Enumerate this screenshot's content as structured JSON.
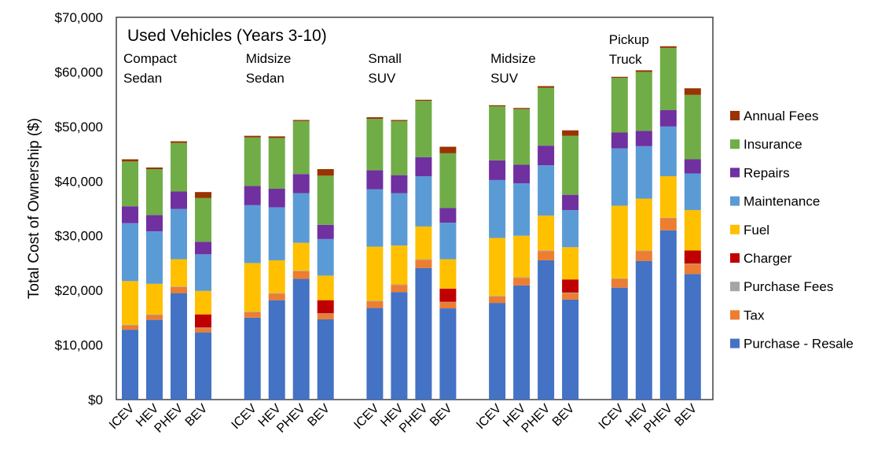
{
  "chart_data": {
    "type": "bar",
    "stacked": true,
    "title": "Used Vehicles (Years 3-10)",
    "ylabel": "Total Cost of Ownership ($)",
    "xlabel": "",
    "ylim": [
      0,
      70000
    ],
    "yticks": [
      0,
      10000,
      20000,
      30000,
      40000,
      50000,
      60000,
      70000
    ],
    "ytick_labels": [
      "$0",
      "$10,000",
      "$20,000",
      "$30,000",
      "$40,000",
      "$50,000",
      "$60,000",
      "$70,000"
    ],
    "grid": false,
    "legend_placement": "right",
    "groups": [
      {
        "label_lines": [
          "Compact",
          "Sedan"
        ]
      },
      {
        "label_lines": [
          "Midsize",
          "Sedan"
        ]
      },
      {
        "label_lines": [
          "Small",
          "SUV"
        ]
      },
      {
        "label_lines": [
          "Midsize",
          "SUV"
        ]
      },
      {
        "label_lines": [
          "Pickup",
          "Truck"
        ]
      }
    ],
    "categories": [
      "ICEV",
      "HEV",
      "PHEV",
      "BEV",
      "ICEV",
      "HEV",
      "PHEV",
      "BEV",
      "ICEV",
      "HEV",
      "PHEV",
      "BEV",
      "ICEV",
      "HEV",
      "PHEV",
      "BEV",
      "ICEV",
      "HEV",
      "PHEV",
      "BEV"
    ],
    "series": [
      {
        "name": "Purchase - Resale",
        "color": "#4472C4",
        "values": [
          12800,
          14600,
          19500,
          12300,
          15000,
          18200,
          22100,
          14700,
          16800,
          19700,
          24100,
          16700,
          17700,
          20900,
          25500,
          18300,
          20500,
          25400,
          31000,
          23000
        ]
      },
      {
        "name": "Tax",
        "color": "#ED7D31",
        "values": [
          800,
          900,
          1100,
          800,
          1000,
          1200,
          1400,
          1000,
          1200,
          1300,
          1500,
          1100,
          1200,
          1400,
          1700,
          1200,
          1600,
          1800,
          2200,
          1800
        ]
      },
      {
        "name": "Purchase Fees",
        "color": "#A5A5A5",
        "values": [
          100,
          100,
          100,
          100,
          100,
          100,
          100,
          100,
          100,
          100,
          100,
          100,
          100,
          100,
          100,
          100,
          100,
          100,
          100,
          100
        ]
      },
      {
        "name": "Charger",
        "color": "#C00000",
        "values": [
          0,
          0,
          0,
          2400,
          0,
          0,
          0,
          2400,
          0,
          0,
          0,
          2400,
          0,
          0,
          0,
          2400,
          0,
          0,
          0,
          2400
        ]
      },
      {
        "name": "Fuel",
        "color": "#FFC000",
        "values": [
          8000,
          5600,
          5000,
          4300,
          8900,
          6000,
          5100,
          4500,
          9900,
          7100,
          6000,
          5400,
          10600,
          7600,
          6400,
          5900,
          13300,
          9500,
          7600,
          7400
        ]
      },
      {
        "name": "Maintenance",
        "color": "#5B9BD5",
        "values": [
          10600,
          9600,
          9200,
          6700,
          10600,
          9700,
          9100,
          6700,
          10500,
          9600,
          9200,
          6700,
          10600,
          9600,
          9200,
          6800,
          10500,
          9600,
          9100,
          6700
        ]
      },
      {
        "name": "Repairs",
        "color": "#7030A0",
        "values": [
          3100,
          3000,
          3200,
          2300,
          3500,
          3400,
          3500,
          2600,
          3500,
          3300,
          3500,
          2700,
          3600,
          3400,
          3600,
          2800,
          2900,
          2800,
          3000,
          2600
        ]
      },
      {
        "name": "Insurance",
        "color": "#70AD47",
        "values": [
          8200,
          8400,
          8900,
          8000,
          8900,
          9300,
          9700,
          9000,
          9400,
          9900,
          10300,
          10000,
          9900,
          10200,
          10600,
          10800,
          10000,
          10800,
          11400,
          11800
        ]
      },
      {
        "name": "Annual Fees",
        "color": "#993300",
        "values": [
          400,
          300,
          300,
          1100,
          300,
          300,
          200,
          1200,
          300,
          200,
          200,
          1200,
          200,
          200,
          300,
          1000,
          200,
          300,
          300,
          1200
        ]
      }
    ],
    "legend_order": [
      "Annual Fees",
      "Insurance",
      "Repairs",
      "Maintenance",
      "Fuel",
      "Charger",
      "Purchase Fees",
      "Tax",
      "Purchase - Resale"
    ]
  }
}
